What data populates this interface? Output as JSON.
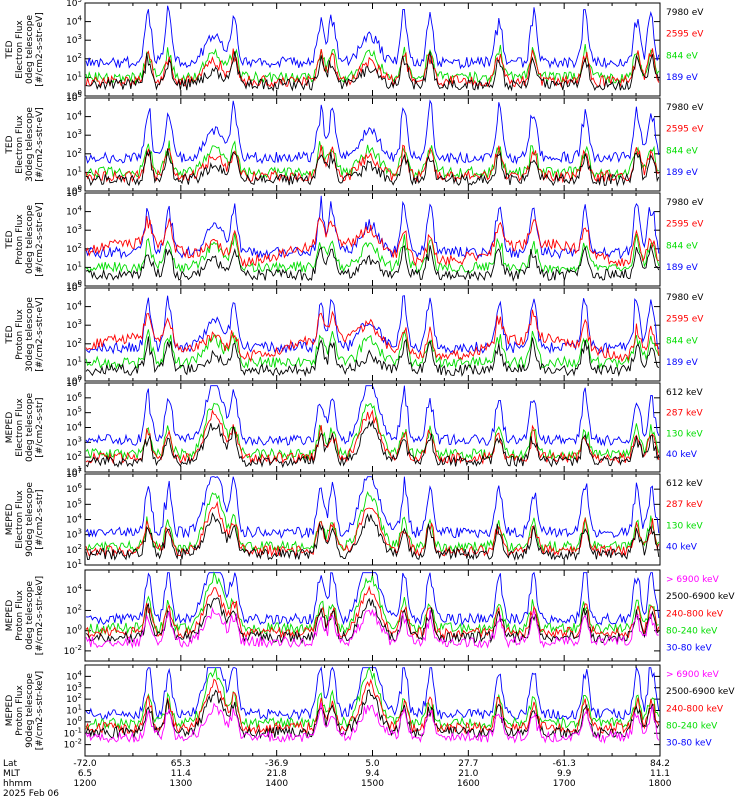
{
  "footer": {
    "rows": [
      "Lat",
      "MLT",
      "hhmm",
      "2025 Feb 06"
    ],
    "lat": [
      "-72.0",
      "65.3",
      "-36.9",
      "5.0",
      "27.7",
      "-61.3",
      "84.2"
    ],
    "mlt": [
      "6.5",
      "11.4",
      "21.8",
      "9.4",
      "21.0",
      "9.9",
      "11.1"
    ],
    "hhmm": [
      "1200",
      "1300",
      "1400",
      "1500",
      "1600",
      "1700",
      "1800"
    ]
  },
  "colors": {
    "blue": "#0000ff",
    "red": "#ff0000",
    "green": "#00dd00",
    "black": "#000000",
    "magenta": "#ff00ff"
  },
  "chart_data": [
    {
      "type": "line",
      "ylabel": [
        "TED",
        "Electron Flux",
        "0deg telescope",
        "[#/cm2-s-str-eV]"
      ],
      "ylog": true,
      "ylim_exp": [
        0,
        5
      ],
      "yticks_exp": [
        0,
        1,
        2,
        3,
        4,
        5
      ],
      "legend": [
        {
          "label": "7980 eV",
          "color": "#000000"
        },
        {
          "label": "2595 eV",
          "color": "#ff0000"
        },
        {
          "label": "844 eV",
          "color": "#00dd00"
        },
        {
          "label": "189 eV",
          "color": "#0000ff"
        }
      ]
    },
    {
      "type": "line",
      "ylabel": [
        "TED",
        "Electron Flux",
        "30deg telescope",
        "[#/cm2-s-str-eV]"
      ],
      "ylog": true,
      "ylim_exp": [
        0,
        5
      ],
      "yticks_exp": [
        0,
        1,
        2,
        3,
        4,
        5
      ],
      "legend": [
        {
          "label": "7980 eV",
          "color": "#000000"
        },
        {
          "label": "2595 eV",
          "color": "#ff0000"
        },
        {
          "label": "844 eV",
          "color": "#00dd00"
        },
        {
          "label": "189 eV",
          "color": "#0000ff"
        }
      ]
    },
    {
      "type": "line",
      "ylabel": [
        "TED",
        "Proton Flux",
        "0deg telescope",
        "[#/cm2-s-str-eV]"
      ],
      "ylog": true,
      "ylim_exp": [
        0,
        5
      ],
      "yticks_exp": [
        0,
        1,
        2,
        3,
        4,
        5
      ],
      "legend": [
        {
          "label": "7980 eV",
          "color": "#000000"
        },
        {
          "label": "2595 eV",
          "color": "#ff0000"
        },
        {
          "label": "844 eV",
          "color": "#00dd00"
        },
        {
          "label": "189 eV",
          "color": "#0000ff"
        }
      ]
    },
    {
      "type": "line",
      "ylabel": [
        "TED",
        "Proton Flux",
        "30deg telescope",
        "[#/cm2-s-str-eV]"
      ],
      "ylog": true,
      "ylim_exp": [
        0,
        5
      ],
      "yticks_exp": [
        0,
        1,
        2,
        3,
        4,
        5
      ],
      "legend": [
        {
          "label": "7980 eV",
          "color": "#000000"
        },
        {
          "label": "2595 eV",
          "color": "#ff0000"
        },
        {
          "label": "844 eV",
          "color": "#00dd00"
        },
        {
          "label": "189 eV",
          "color": "#0000ff"
        }
      ]
    },
    {
      "type": "line",
      "ylabel": [
        "MEPED",
        "Electron Flux",
        "0deg telescope",
        "[#/cm2-s-str]"
      ],
      "ylog": true,
      "ylim_exp": [
        1,
        7
      ],
      "yticks_exp": [
        1,
        2,
        3,
        4,
        5,
        6,
        7
      ],
      "legend": [
        {
          "label": "612 keV",
          "color": "#000000"
        },
        {
          "label": "287 keV",
          "color": "#ff0000"
        },
        {
          "label": "130 keV",
          "color": "#00dd00"
        },
        {
          "label": "40 keV",
          "color": "#0000ff"
        }
      ]
    },
    {
      "type": "line",
      "ylabel": [
        "MEPED",
        "Electron Flux",
        "90deg telescope",
        "[#/cm2-s-str]"
      ],
      "ylog": true,
      "ylim_exp": [
        1,
        7
      ],
      "yticks_exp": [
        1,
        2,
        3,
        4,
        5,
        6,
        7
      ],
      "legend": [
        {
          "label": "612 keV",
          "color": "#000000"
        },
        {
          "label": "287 keV",
          "color": "#ff0000"
        },
        {
          "label": "130 keV",
          "color": "#00dd00"
        },
        {
          "label": "40 keV",
          "color": "#0000ff"
        }
      ]
    },
    {
      "type": "line",
      "ylabel": [
        "MEPED",
        "Proton Flux",
        "0deg telescope",
        "[#/cm2-s-str-keV]"
      ],
      "ylog": true,
      "ylim_exp": [
        -3,
        6
      ],
      "yticks_exp": [
        -2,
        0,
        2,
        4
      ],
      "legend": [
        {
          "label": "> 6900 keV",
          "color": "#ff00ff"
        },
        {
          "label": "2500-6900 keV",
          "color": "#000000"
        },
        {
          "label": "240-800 keV",
          "color": "#ff0000"
        },
        {
          "label": "80-240 keV",
          "color": "#00dd00"
        },
        {
          "label": "30-80 keV",
          "color": "#0000ff"
        }
      ]
    },
    {
      "type": "line",
      "ylabel": [
        "MEPED",
        "Proton Flux",
        "90deg telescope",
        "[#/cm2-s-str-keV]"
      ],
      "ylog": true,
      "ylim_exp": [
        -3,
        5
      ],
      "yticks_exp": [
        -2,
        -1,
        0,
        1,
        2,
        3,
        4
      ],
      "legend": [
        {
          "label": "> 6900 keV",
          "color": "#ff00ff"
        },
        {
          "label": "2500-6900 keV",
          "color": "#000000"
        },
        {
          "label": "240-800 keV",
          "color": "#ff0000"
        },
        {
          "label": "80-240 keV",
          "color": "#00dd00"
        },
        {
          "label": "30-80 keV",
          "color": "#0000ff"
        }
      ]
    }
  ]
}
